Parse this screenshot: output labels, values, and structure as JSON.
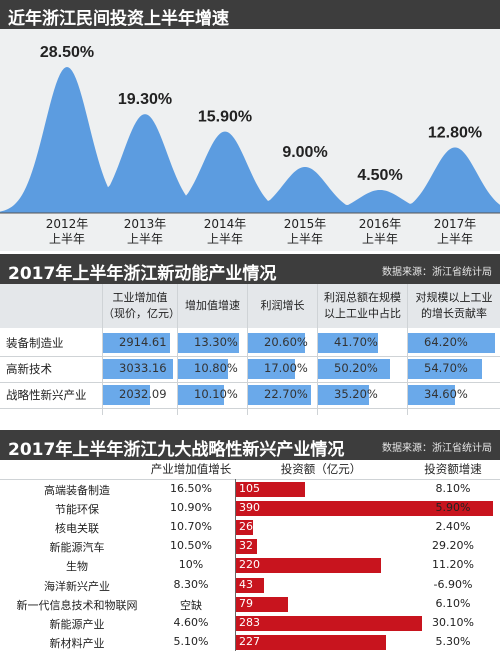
{
  "section1": {
    "title": "近年浙江民间投资上半年增速",
    "chart_data": {
      "type": "area",
      "categories": [
        "2012年\n上半年",
        "2013年\n上半年",
        "2014年\n上半年",
        "2015年\n上半年",
        "2016年\n上半年",
        "2017年\n上半年"
      ],
      "values": [
        28.5,
        19.3,
        15.9,
        9.0,
        4.5,
        12.8
      ],
      "value_labels": [
        "28.50%",
        "19.30%",
        "15.90%",
        "9.00%",
        "4.50%",
        "12.80%"
      ],
      "title": "近年浙江民间投资上半年增速",
      "colors": {
        "fill": "#5c9ce0",
        "background": "#eef0f1"
      }
    }
  },
  "section2": {
    "title": "2017年上半年浙江新动能产业情况",
    "source": "数据来源：浙江省统计局",
    "chart_data": {
      "type": "table",
      "columns": [
        "工业增加值\n（现价，亿元）",
        "增加值增速",
        "利润增长",
        "利润总额在规模\n以上工业中占比",
        "对规模以上工业\n的增长贡献率"
      ],
      "rows": [
        {
          "name": "装备制造业",
          "values": [
            "2914.61",
            "13.30%",
            "20.60%",
            "41.70%",
            "64.20%"
          ],
          "numbers": [
            2914.61,
            13.3,
            20.6,
            41.7,
            64.2
          ]
        },
        {
          "name": "高新技术",
          "values": [
            "3033.16",
            "10.80%",
            "17.00%",
            "50.20%",
            "54.70%"
          ],
          "numbers": [
            3033.16,
            10.8,
            17.0,
            50.2,
            54.7
          ]
        },
        {
          "name": "战略性新兴产业",
          "values": [
            "2032.09",
            "10.10%",
            "22.70%",
            "35.20%",
            "34.60%"
          ],
          "numbers": [
            2032.09,
            10.1,
            22.7,
            35.2,
            34.6
          ]
        }
      ],
      "colors": {
        "bar": "#6aa9ea"
      }
    }
  },
  "section3": {
    "title": "2017年上半年浙江九大战略性新兴产业情况",
    "source": "数据来源：浙江省统计局",
    "chart_data": {
      "type": "bar",
      "columns": [
        "产业增加值增长",
        "投资额（亿元）",
        "投资额增速"
      ],
      "rows": [
        {
          "name": "高端装备制造",
          "growth": "16.50%",
          "investment": 105,
          "inv_growth": "8.10%"
        },
        {
          "name": "节能环保",
          "growth": "10.90%",
          "investment": 390,
          "inv_growth": "5.90%"
        },
        {
          "name": "核电关联",
          "growth": "10.70%",
          "investment": 26,
          "inv_growth": "2.40%"
        },
        {
          "name": "新能源汽车",
          "growth": "10.50%",
          "investment": 32,
          "inv_growth": "29.20%"
        },
        {
          "name": "生物",
          "growth": "10%",
          "investment": 220,
          "inv_growth": "11.20%"
        },
        {
          "name": "海洋新兴产业",
          "growth": "8.30%",
          "investment": 43,
          "inv_growth": "-6.90%"
        },
        {
          "name": "新一代信息技术和物联网",
          "growth": "空缺",
          "investment": 79,
          "inv_growth": "6.10%"
        },
        {
          "name": "新能源产业",
          "growth": "4.60%",
          "investment": 283,
          "inv_growth": "30.10%"
        },
        {
          "name": "新材料产业",
          "growth": "5.10%",
          "investment": 227,
          "inv_growth": "5.30%"
        }
      ],
      "colors": {
        "bar": "#c8141e"
      }
    }
  }
}
